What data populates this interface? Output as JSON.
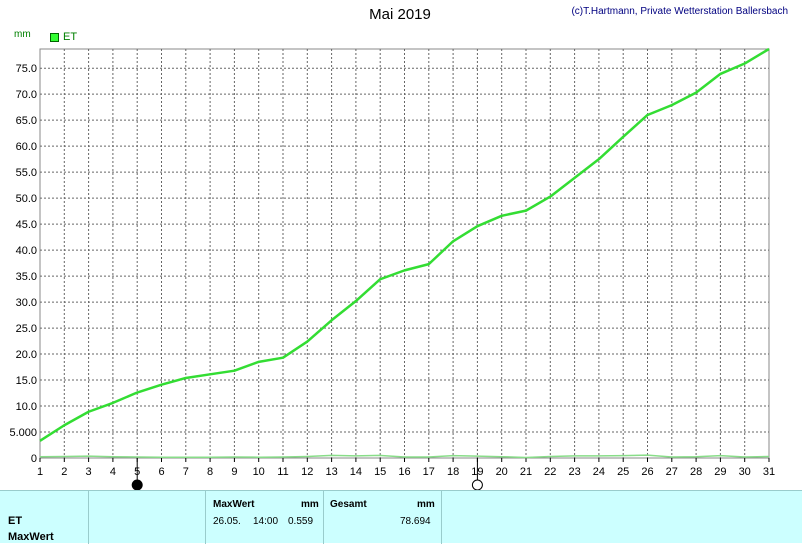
{
  "header": {
    "title": "Mai 2019",
    "copyright": "(c)T.Hartmann, Private Wetterstation Ballersbach",
    "unit": "mm"
  },
  "legend": {
    "label": "ET"
  },
  "colors": {
    "series": "#33dd33",
    "baseline_series": "#88dd88",
    "grid": "#666666",
    "table_bg": "#ccffff"
  },
  "chart_data": {
    "type": "line",
    "ylabel": "mm",
    "ylim": [
      0,
      78.694
    ],
    "yticks": [
      0,
      5,
      10,
      15,
      20,
      25,
      30,
      35,
      40,
      45,
      50,
      55,
      60,
      65,
      70,
      75
    ],
    "ytick_labels": [
      "0",
      "5.000",
      "10.0",
      "15.0",
      "20.0",
      "25.0",
      "30.0",
      "35.0",
      "40.0",
      "45.0",
      "50.0",
      "55.0",
      "60.0",
      "65.0",
      "70.0",
      "75.0"
    ],
    "x_categories": [
      "1",
      "2",
      "3",
      "4",
      "5",
      "6",
      "7",
      "8",
      "9",
      "10",
      "11",
      "12",
      "13",
      "14",
      "15",
      "16",
      "17",
      "18",
      "19",
      "20",
      "21",
      "22",
      "23",
      "24",
      "25",
      "26",
      "27",
      "28",
      "29",
      "30",
      "31"
    ],
    "grid": true,
    "series": [
      {
        "name": "ET",
        "x": [
          1,
          2,
          3,
          4,
          5,
          6,
          7,
          8,
          9,
          10,
          11,
          12,
          13,
          14,
          15,
          16,
          17,
          18,
          19,
          20,
          21,
          22,
          23,
          24,
          25,
          26,
          27,
          28,
          29,
          30,
          31
        ],
        "values": [
          3.3,
          6.3,
          8.9,
          10.6,
          12.6,
          14.1,
          15.4,
          16.1,
          16.8,
          18.5,
          19.3,
          22.4,
          26.5,
          30.2,
          34.4,
          36.1,
          37.3,
          41.7,
          44.6,
          46.6,
          47.6,
          50.3,
          53.9,
          57.5,
          61.8,
          66.0,
          67.9,
          70.3,
          73.9,
          75.9,
          78.694
        ]
      },
      {
        "name": "",
        "x": [
          1,
          2,
          3,
          4,
          5,
          6,
          7,
          8,
          9,
          10,
          11,
          12,
          13,
          14,
          15,
          16,
          17,
          18,
          19,
          20,
          21,
          22,
          23,
          24,
          25,
          26,
          27,
          28,
          29,
          30,
          31
        ],
        "values": [
          0.25,
          0.3,
          0.35,
          0.25,
          0.2,
          0.15,
          0.15,
          0.15,
          0.2,
          0.15,
          0.2,
          0.3,
          0.5,
          0.4,
          0.5,
          0.2,
          0.2,
          0.45,
          0.35,
          0.25,
          0.1,
          0.3,
          0.4,
          0.4,
          0.45,
          0.559,
          0.2,
          0.25,
          0.45,
          0.2,
          0.3
        ]
      }
    ],
    "markers": [
      {
        "x": 5,
        "symbol": "new-moon"
      },
      {
        "x": 19,
        "symbol": "full-moon"
      }
    ]
  },
  "table": {
    "row_label_1": "ET",
    "row_label_2": "MaxWert",
    "max_header": "MaxWert",
    "max_unit": "mm",
    "max_date": "26.05.",
    "max_time": "14:00",
    "max_value": "0.559",
    "total_header": "Gesamt",
    "total_unit": "mm",
    "total_value": "78.694"
  }
}
